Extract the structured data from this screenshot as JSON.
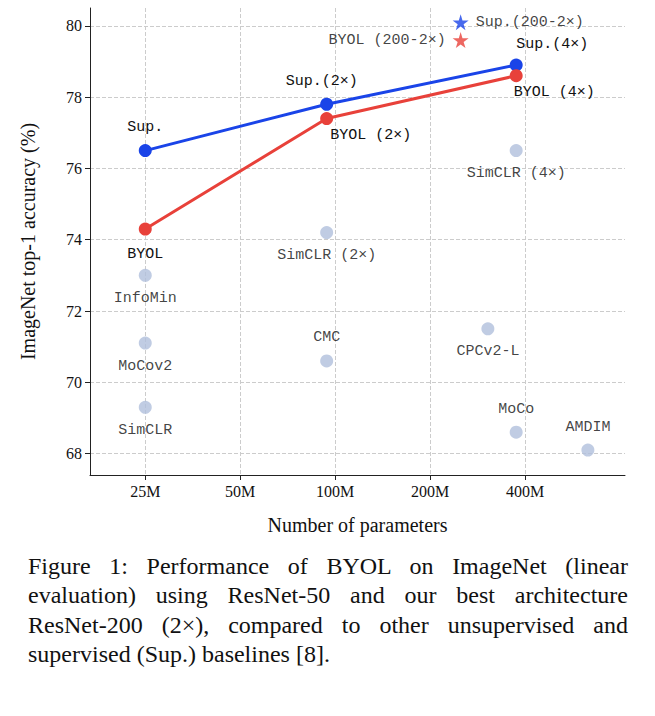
{
  "chart_data": {
    "type": "scatter",
    "x_label": "Number of parameters",
    "y_label": "ImageNet top-1 accuracy (%)",
    "log": "x",
    "grid": true,
    "xlim": [
      16700000,
      830000000
    ],
    "xticks": [
      {
        "value": 25000000,
        "label": "25M"
      },
      {
        "value": 50000000,
        "label": "50M"
      },
      {
        "value": 100000000,
        "label": "100M"
      },
      {
        "value": 200000000,
        "label": "200M"
      },
      {
        "value": 400000000,
        "label": "400M"
      }
    ],
    "ylim": [
      67.4,
      80.5
    ],
    "yticks": [
      68,
      70,
      72,
      74,
      76,
      78,
      80
    ],
    "series": [
      {
        "name": "Sup.",
        "type": "line",
        "color": "#1a44e8",
        "marker": "circle",
        "x": [
          25000000,
          94000000,
          375000000
        ],
        "values": [
          76.5,
          77.8,
          78.9
        ],
        "labels": [
          "Sup.",
          "Sup.(2×)",
          "Sup.(4×)"
        ]
      },
      {
        "name": "BYOL",
        "type": "line",
        "color": "#e8413a",
        "marker": "circle",
        "x": [
          25000000,
          94000000,
          375000000
        ],
        "values": [
          74.3,
          77.4,
          78.6
        ],
        "labels": [
          "BYOL",
          "BYOL (2×)",
          "BYOL (4×)"
        ]
      },
      {
        "name": "Sup.(200-2×)",
        "type": "scatter",
        "color": "#1a44e8",
        "marker": "star",
        "x": [
          250000000
        ],
        "values": [
          80.1
        ],
        "labels": [
          "Sup.(200-2×)"
        ]
      },
      {
        "name": "BYOL (200-2×)",
        "type": "scatter",
        "color": "#e8413a",
        "marker": "star",
        "x": [
          250000000
        ],
        "values": [
          79.6
        ],
        "labels": [
          "BYOL (200-2×)"
        ]
      },
      {
        "type": "scatter",
        "color": "#b0bfdc",
        "marker": "circle",
        "x": [
          25000000,
          25000000,
          25000000,
          94000000,
          94000000,
          375000000,
          305000000,
          375000000,
          633000000
        ],
        "values": [
          73.0,
          71.1,
          69.3,
          74.2,
          70.6,
          76.5,
          71.5,
          68.6,
          68.1
        ],
        "labels": [
          "InfoMin",
          "MoCov2",
          "SimCLR",
          "SimCLR (2×)",
          "CMC",
          "SimCLR (4×)",
          "CPCv2-L",
          "MoCo",
          "AMDIM"
        ]
      }
    ],
    "caption": "Figure 1: Performance of BYOL on ImageNet (linear evaluation) using ResNet-50 and our best architecture ResNet-200 (2×), compared to other unsupervised and supervised (Sup.) baselines [8]."
  }
}
